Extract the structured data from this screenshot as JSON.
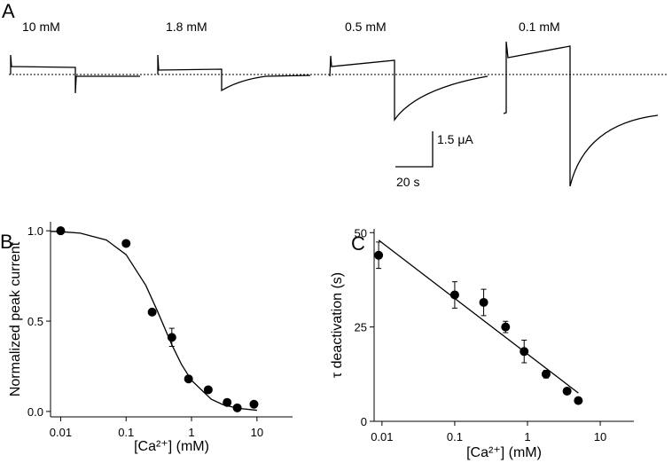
{
  "panel_a": {
    "label": "A",
    "traces": [
      "10 mM",
      "1.8 mM",
      "0.5 mM",
      "0.1 mM"
    ],
    "scale_y": "1.5 μA",
    "scale_x": "20 s"
  },
  "chart_data": [
    {
      "type": "scatter",
      "panel_label": "B",
      "x_label": "[Ca²⁺] (mM)",
      "y_label": "Normalized peak current",
      "xscale": "log",
      "xlim": [
        0.007,
        35
      ],
      "xticks": [
        0.01,
        0.1,
        1,
        10
      ],
      "ylim": [
        -0.03,
        1.05
      ],
      "yticks": [
        {
          "value": 0,
          "label": "0.0"
        },
        {
          "value": 0.5,
          "label": "0.5"
        },
        {
          "value": 1,
          "label": "1.0"
        }
      ],
      "series": [
        {
          "style": "markers",
          "color": "#000000",
          "x": [
            0.01,
            0.1,
            0.25,
            0.5,
            0.9,
            1.8,
            3.5,
            5,
            9
          ],
          "values": [
            1.0,
            0.93,
            0.55,
            0.41,
            0.18,
            0.12,
            0.05,
            0.02,
            0.04
          ],
          "errors": [
            null,
            null,
            null,
            0.05,
            null,
            null,
            null,
            null,
            null
          ]
        },
        {
          "style": "line",
          "color": "#000000",
          "x": [
            0.007,
            0.01,
            0.02,
            0.05,
            0.1,
            0.2,
            0.3,
            0.5,
            0.7,
            1,
            2,
            3,
            5,
            10
          ],
          "values": [
            0.997,
            0.995,
            0.987,
            0.949,
            0.868,
            0.698,
            0.557,
            0.369,
            0.261,
            0.172,
            0.068,
            0.038,
            0.018,
            0.0065
          ]
        }
      ]
    },
    {
      "type": "scatter",
      "panel_label": "C",
      "x_label": "[Ca²⁺] (mM)",
      "y_label": "τ deactivation (s)",
      "xscale": "log",
      "xlim": [
        0.0078,
        29
      ],
      "xticks": [
        0.01,
        0.1,
        1,
        10
      ],
      "ylim": [
        0,
        51
      ],
      "yticks": [
        0,
        25,
        50
      ],
      "series": [
        {
          "style": "markers",
          "color": "#000000",
          "x": [
            0.009,
            0.1,
            0.25,
            0.5,
            0.9,
            1.8,
            3.5,
            5
          ],
          "values": [
            44,
            33.5,
            31.5,
            25,
            18.5,
            12.5,
            8,
            5.5
          ],
          "errors": [
            3.5,
            3.5,
            3.5,
            1.5,
            3,
            1,
            0.5,
            0.5
          ]
        },
        {
          "style": "line",
          "color": "#000000",
          "x": [
            0.009,
            5
          ],
          "values": [
            48,
            7.5
          ]
        }
      ]
    }
  ]
}
